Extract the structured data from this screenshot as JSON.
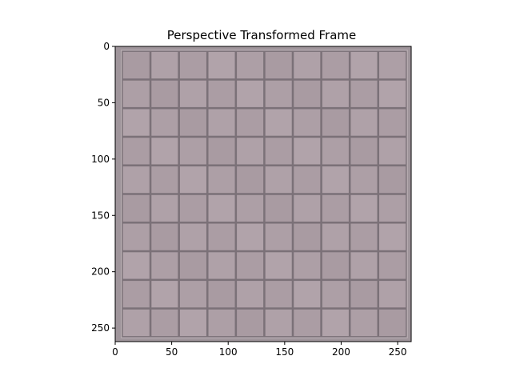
{
  "figure": {
    "title": "Perspective Transformed Frame"
  },
  "image": {
    "description_colors": {
      "background": "#9f959b",
      "tile": "#ad9fa6",
      "grout": "#7b7178",
      "edge_light": "#b9aeb3"
    },
    "data_extent": {
      "x": [
        0,
        262
      ],
      "y": [
        0,
        262
      ]
    },
    "grid": {
      "columns": 10,
      "rows": 10
    }
  },
  "axes": {
    "x_ticks": [
      {
        "value": 0,
        "label": "0"
      },
      {
        "value": 50,
        "label": "50"
      },
      {
        "value": 100,
        "label": "100"
      },
      {
        "value": 150,
        "label": "150"
      },
      {
        "value": 200,
        "label": "200"
      },
      {
        "value": 250,
        "label": "250"
      }
    ],
    "y_ticks": [
      {
        "value": 0,
        "label": "0"
      },
      {
        "value": 50,
        "label": "50"
      },
      {
        "value": 100,
        "label": "100"
      },
      {
        "value": 150,
        "label": "150"
      },
      {
        "value": 200,
        "label": "200"
      },
      {
        "value": 250,
        "label": "250"
      }
    ]
  }
}
